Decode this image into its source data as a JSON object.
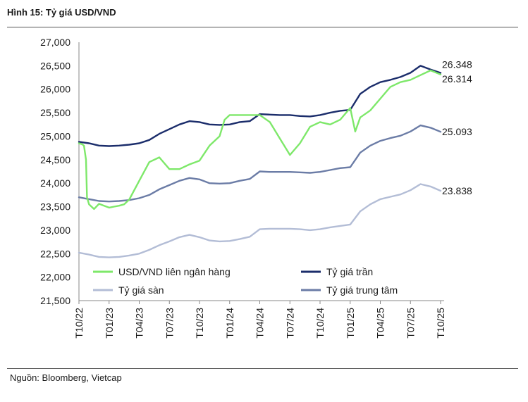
{
  "title": "Hình 15: Tỷ giá USD/VND",
  "source": "Nguồn: Bloomberg, Vietcap",
  "colors": {
    "interbank": "#7ee86a",
    "ceiling": "#1b2d6b",
    "floor": "#b3bdd6",
    "central": "#6b7ca6"
  },
  "chart_data": {
    "type": "line",
    "title": "Hình 15: Tỷ giá USD/VND",
    "xlabel": "",
    "ylabel": "",
    "ylim": [
      21500,
      27000
    ],
    "yticks": [
      "27,000",
      "26,500",
      "26,000",
      "25,500",
      "25,000",
      "24,500",
      "24,000",
      "23,500",
      "23,000",
      "22,500",
      "22,000",
      "21,500"
    ],
    "yticks_values": [
      27000,
      26500,
      26000,
      25500,
      25000,
      24500,
      24000,
      23500,
      23000,
      22500,
      22000,
      21500
    ],
    "xticks": [
      "T10/22",
      "T01/23",
      "T04/23",
      "T07/23",
      "T10/23",
      "T01/24",
      "T04/24",
      "T07/24",
      "T10/24",
      "T01/25",
      "T04/25",
      "T07/25",
      "T10/25"
    ],
    "grid": false,
    "legend_position": "bottom",
    "end_labels": {
      "ceiling": "26.348",
      "interbank": "26.314",
      "central": "25.093",
      "floor": "23.838"
    },
    "series": [
      {
        "key": "interbank",
        "name": "USD/VND liên ngân hàng",
        "x": [
          0,
          0.3,
          0.5,
          0.7,
          0.8,
          1,
          1.5,
          2,
          2.5,
          3,
          3.5,
          4,
          4.5,
          5,
          6,
          7,
          8,
          9,
          10,
          11,
          12,
          13,
          14,
          14.5,
          15,
          16,
          17,
          18,
          19,
          20,
          21,
          22,
          23,
          24,
          25,
          26,
          27,
          27.5,
          28,
          29,
          30,
          31,
          32,
          33,
          34,
          35,
          36
        ],
        "values": [
          24850,
          24830,
          24800,
          24500,
          23700,
          23550,
          23450,
          23560,
          23520,
          23480,
          23500,
          23520,
          23550,
          23650,
          24050,
          24450,
          24550,
          24300,
          24300,
          24400,
          24480,
          24800,
          25000,
          25350,
          25450,
          25450,
          25450,
          25450,
          25300,
          24950,
          24600,
          24850,
          25200,
          25300,
          25250,
          25350,
          25600,
          25100,
          25400,
          25550,
          25800,
          26050,
          26150,
          26200,
          26300,
          26400,
          26314
        ]
      },
      {
        "key": "ceiling",
        "name": "Tỷ giá trần",
        "x": [
          0,
          1,
          2,
          3,
          4,
          5,
          6,
          7,
          8,
          9,
          10,
          11,
          12,
          13,
          14,
          15,
          16,
          17,
          18,
          19,
          20,
          21,
          22,
          23,
          24,
          25,
          26,
          27,
          28,
          29,
          30,
          31,
          32,
          33,
          34,
          35,
          36
        ],
        "values": [
          24880,
          24850,
          24800,
          24790,
          24800,
          24820,
          24850,
          24920,
          25050,
          25150,
          25250,
          25320,
          25300,
          25250,
          25240,
          25250,
          25300,
          25320,
          25470,
          25460,
          25450,
          25450,
          25430,
          25420,
          25450,
          25500,
          25540,
          25560,
          25900,
          26050,
          26150,
          26200,
          26260,
          26350,
          26500,
          26420,
          26348
        ]
      },
      {
        "key": "floor",
        "name": "Tỷ giá sàn",
        "x": [
          0,
          1,
          2,
          3,
          4,
          5,
          6,
          7,
          8,
          9,
          10,
          11,
          12,
          13,
          14,
          15,
          16,
          17,
          18,
          19,
          20,
          21,
          22,
          23,
          24,
          25,
          26,
          27,
          28,
          29,
          30,
          31,
          32,
          33,
          34,
          35,
          36
        ],
        "values": [
          22520,
          22480,
          22430,
          22420,
          22430,
          22460,
          22500,
          22580,
          22680,
          22760,
          22850,
          22900,
          22850,
          22780,
          22760,
          22770,
          22810,
          22860,
          23020,
          23030,
          23030,
          23030,
          23020,
          23000,
          23020,
          23060,
          23090,
          23120,
          23400,
          23550,
          23660,
          23710,
          23760,
          23850,
          23980,
          23930,
          23838
        ]
      },
      {
        "key": "central",
        "name": "Tỷ giá trung tâm",
        "x": [
          0,
          1,
          2,
          3,
          4,
          5,
          6,
          7,
          8,
          9,
          10,
          11,
          12,
          13,
          14,
          15,
          16,
          17,
          18,
          19,
          20,
          21,
          22,
          23,
          24,
          25,
          26,
          27,
          28,
          29,
          30,
          31,
          32,
          33,
          34,
          35,
          36
        ],
        "values": [
          23700,
          23660,
          23620,
          23610,
          23620,
          23640,
          23680,
          23750,
          23870,
          23960,
          24050,
          24110,
          24080,
          24000,
          23990,
          24000,
          24050,
          24090,
          24250,
          24240,
          24240,
          24240,
          24230,
          24220,
          24240,
          24280,
          24320,
          24340,
          24650,
          24800,
          24900,
          24960,
          25010,
          25100,
          25230,
          25180,
          25093
        ]
      }
    ]
  }
}
